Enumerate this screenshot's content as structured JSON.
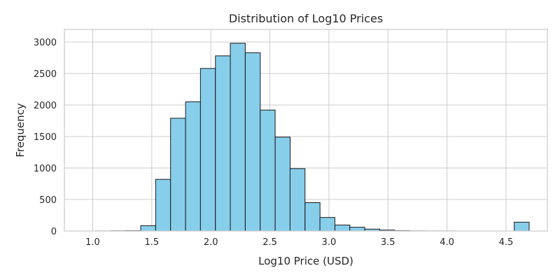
{
  "chart_data": {
    "type": "bar",
    "title": "Distribution of Log10 Prices",
    "xlabel": "Log10 Price (USD)",
    "ylabel": "Frequency",
    "xlim": [
      0.76,
      4.85
    ],
    "ylim": [
      0,
      3200
    ],
    "xticks": [
      "1.0",
      "1.5",
      "2.0",
      "2.5",
      "3.0",
      "3.5",
      "4.0",
      "4.5"
    ],
    "yticks": [
      "0",
      "500",
      "1000",
      "1500",
      "2000",
      "2500",
      "3000"
    ],
    "grid": true,
    "bin_width": 0.1265,
    "bins": [
      {
        "x0": 0.9,
        "value": 0
      },
      {
        "x0": 1.027,
        "value": 1
      },
      {
        "x0": 1.153,
        "value": 3
      },
      {
        "x0": 1.28,
        "value": 5
      },
      {
        "x0": 1.406,
        "value": 85
      },
      {
        "x0": 1.533,
        "value": 820
      },
      {
        "x0": 1.659,
        "value": 1790
      },
      {
        "x0": 1.786,
        "value": 2050
      },
      {
        "x0": 1.912,
        "value": 2580
      },
      {
        "x0": 2.039,
        "value": 2780
      },
      {
        "x0": 2.165,
        "value": 2980
      },
      {
        "x0": 2.292,
        "value": 2830
      },
      {
        "x0": 2.418,
        "value": 1920
      },
      {
        "x0": 2.545,
        "value": 1490
      },
      {
        "x0": 2.671,
        "value": 990
      },
      {
        "x0": 2.798,
        "value": 450
      },
      {
        "x0": 2.924,
        "value": 215
      },
      {
        "x0": 3.051,
        "value": 95
      },
      {
        "x0": 3.177,
        "value": 60
      },
      {
        "x0": 3.304,
        "value": 30
      },
      {
        "x0": 3.43,
        "value": 15
      },
      {
        "x0": 3.557,
        "value": 5
      },
      {
        "x0": 3.683,
        "value": 2
      },
      {
        "x0": 3.81,
        "value": 1
      },
      {
        "x0": 3.936,
        "value": 1
      },
      {
        "x0": 4.063,
        "value": 0
      },
      {
        "x0": 4.189,
        "value": 0
      },
      {
        "x0": 4.316,
        "value": 0
      },
      {
        "x0": 4.442,
        "value": 0
      },
      {
        "x0": 4.569,
        "value": 140
      }
    ]
  }
}
